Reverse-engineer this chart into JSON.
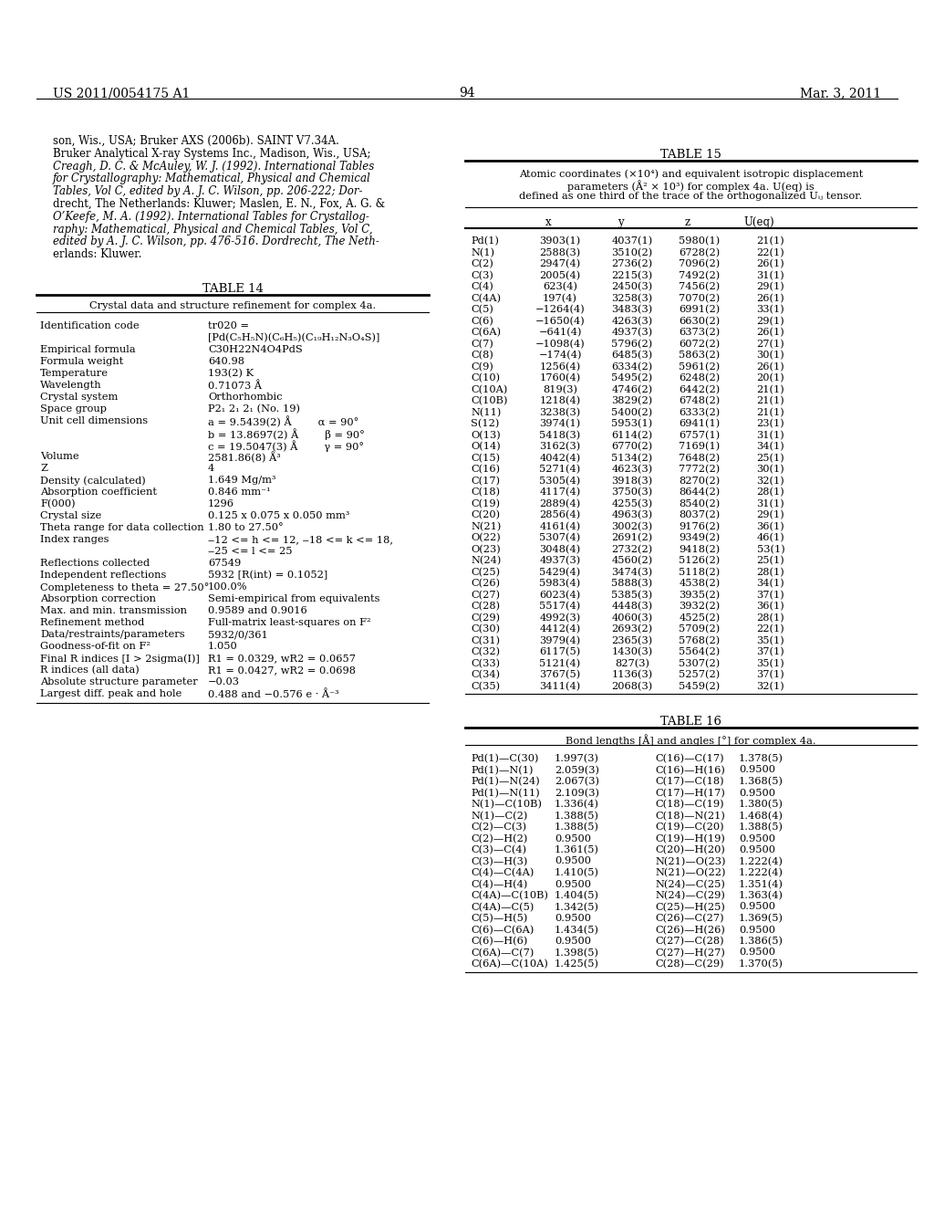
{
  "page_header_left": "US 2011/0054175 A1",
  "page_header_right": "Mar. 3, 2011",
  "page_number": "94",
  "background_color": "#ffffff",
  "intro_text": [
    "son, Wis., USA; Bruker AXS (2006b). SAINT V7.34A.",
    "Bruker Analytical X-ray Systems Inc., Madison, Wis., USA;",
    "Creagh, D. C. & McAuley, W. J. (1992). International Tables",
    "for Crystallography: Mathematical, Physical and Chemical",
    "Tables, Vol C, edited by A. J. C. Wilson, pp. 206-222; Dor-",
    "drecht, The Netherlands: Kluwer; Maslen, E. N., Fox, A. G. &",
    "O’Keefe, M. A. (1992). International Tables for Crystallog-",
    "raphy: Mathematical, Physical and Chemical Tables, Vol C,",
    "edited by A. J. C. Wilson, pp. 476-516. Dordrecht, The Neth-",
    "erlands: Kluwer."
  ],
  "intro_italic_lines": [
    2,
    3,
    4,
    6,
    7,
    8
  ],
  "table14_title": "TABLE 14",
  "table14_subtitle": "Crystal data and structure refinement for complex 4a.",
  "table14_rows": [
    [
      "Identification code",
      "tr020 =\n[Pd(C₅H₅N)(C₆H₅)(C₁₉H₁₂N₃O₄S)]"
    ],
    [
      "Empirical formula",
      "C30H22N4O4PdS"
    ],
    [
      "Formula weight",
      "640.98"
    ],
    [
      "Temperature",
      "193(2) K"
    ],
    [
      "Wavelength",
      "0.71073 Å"
    ],
    [
      "Crystal system",
      "Orthorhombic"
    ],
    [
      "Space group",
      "P2₁ 2₁ 2₁ (No. 19)"
    ],
    [
      "Unit cell dimensions",
      "a = 9.5439(2) Å        α = 90°\nb = 13.8697(2) Å        β = 90°\nc = 19.5047(3) Å        γ = 90°"
    ],
    [
      "Volume",
      "2581.86(8) Å³"
    ],
    [
      "Z",
      "4"
    ],
    [
      "Density (calculated)",
      "1.649 Mg/m³"
    ],
    [
      "Absorption coefficient",
      "0.846 mm⁻¹"
    ],
    [
      "F(000)",
      "1296"
    ],
    [
      "Crystal size",
      "0.125 x 0.075 x 0.050 mm³"
    ],
    [
      "Theta range for data collection",
      "1.80 to 27.50°"
    ],
    [
      "Index ranges",
      "‒12 <= h <= 12, ‒18 <= k <= 18,\n‒25 <= l <= 25"
    ],
    [
      "Reflections collected",
      "67549"
    ],
    [
      "Independent reflections",
      "5932 [R(int) = 0.1052]"
    ],
    [
      "Completeness to theta = 27.50°",
      "100.0%"
    ],
    [
      "Absorption correction",
      "Semi-empirical from equivalents"
    ],
    [
      "Max. and min. transmission",
      "0.9589 and 0.9016"
    ],
    [
      "Refinement method",
      "Full-matrix least-squares on F²"
    ],
    [
      "Data/restraints/parameters",
      "5932/0/361"
    ],
    [
      "Goodness-of-fit on F²",
      "1.050"
    ],
    [
      "Final R indices [I > 2sigma(I)]",
      "R1 = 0.0329, wR2 = 0.0657"
    ],
    [
      "R indices (all data)",
      "R1 = 0.0427, wR2 = 0.0698"
    ],
    [
      "Absolute structure parameter",
      "−0.03"
    ],
    [
      "Largest diff. peak and hole",
      "0.488 and −0.576 e · Å⁻³"
    ]
  ],
  "table15_title": "TABLE 15",
  "table15_subtitle_lines": [
    "Atomic coordinates (×10⁴) and equivalent isotropic displacement",
    "parameters (Å² × 10³) for complex 4a. U(eq) is",
    "defined as one third of the trace of the orthogonalized Uᵢⱼ tensor."
  ],
  "table15_col_headers": [
    "",
    "x",
    "y",
    "z",
    "U(eq)"
  ],
  "table15_rows": [
    [
      "Pd(1)",
      "3903(1)",
      "4037(1)",
      "5980(1)",
      "21(1)"
    ],
    [
      "N(1)",
      "2588(3)",
      "3510(2)",
      "6728(2)",
      "22(1)"
    ],
    [
      "C(2)",
      "2947(4)",
      "2736(2)",
      "7096(2)",
      "26(1)"
    ],
    [
      "C(3)",
      "2005(4)",
      "2215(3)",
      "7492(2)",
      "31(1)"
    ],
    [
      "C(4)",
      "623(4)",
      "2450(3)",
      "7456(2)",
      "29(1)"
    ],
    [
      "C(4A)",
      "197(4)",
      "3258(3)",
      "7070(2)",
      "26(1)"
    ],
    [
      "C(5)",
      "−1264(4)",
      "3483(3)",
      "6991(2)",
      "33(1)"
    ],
    [
      "C(6)",
      "−1650(4)",
      "4263(3)",
      "6630(2)",
      "29(1)"
    ],
    [
      "C(6A)",
      "−641(4)",
      "4937(3)",
      "6373(2)",
      "26(1)"
    ],
    [
      "C(7)",
      "−1098(4)",
      "5796(2)",
      "6072(2)",
      "27(1)"
    ],
    [
      "C(8)",
      "−174(4)",
      "6485(3)",
      "5863(2)",
      "30(1)"
    ],
    [
      "C(9)",
      "1256(4)",
      "6334(2)",
      "5961(2)",
      "26(1)"
    ],
    [
      "C(10)",
      "1760(4)",
      "5495(2)",
      "6248(2)",
      "20(1)"
    ],
    [
      "C(10A)",
      "819(3)",
      "4746(2)",
      "6442(2)",
      "21(1)"
    ],
    [
      "C(10B)",
      "1218(4)",
      "3829(2)",
      "6748(2)",
      "21(1)"
    ],
    [
      "N(11)",
      "3238(3)",
      "5400(2)",
      "6333(2)",
      "21(1)"
    ],
    [
      "S(12)",
      "3974(1)",
      "5953(1)",
      "6941(1)",
      "23(1)"
    ],
    [
      "O(13)",
      "5418(3)",
      "6114(2)",
      "6757(1)",
      "31(1)"
    ],
    [
      "O(14)",
      "3162(3)",
      "6770(2)",
      "7169(1)",
      "34(1)"
    ],
    [
      "C(15)",
      "4042(4)",
      "5134(2)",
      "7648(2)",
      "25(1)"
    ],
    [
      "C(16)",
      "5271(4)",
      "4623(3)",
      "7772(2)",
      "30(1)"
    ],
    [
      "C(17)",
      "5305(4)",
      "3918(3)",
      "8270(2)",
      "32(1)"
    ],
    [
      "C(18)",
      "4117(4)",
      "3750(3)",
      "8644(2)",
      "28(1)"
    ],
    [
      "C(19)",
      "2889(4)",
      "4255(3)",
      "8540(2)",
      "31(1)"
    ],
    [
      "C(20)",
      "2856(4)",
      "4963(3)",
      "8037(2)",
      "29(1)"
    ],
    [
      "N(21)",
      "4161(4)",
      "3002(3)",
      "9176(2)",
      "36(1)"
    ],
    [
      "O(22)",
      "5307(4)",
      "2691(2)",
      "9349(2)",
      "46(1)"
    ],
    [
      "O(23)",
      "3048(4)",
      "2732(2)",
      "9418(2)",
      "53(1)"
    ],
    [
      "N(24)",
      "4937(3)",
      "4560(2)",
      "5126(2)",
      "25(1)"
    ],
    [
      "C(25)",
      "5429(4)",
      "3474(3)",
      "5118(2)",
      "28(1)"
    ],
    [
      "C(26)",
      "5983(4)",
      "5888(3)",
      "4538(2)",
      "34(1)"
    ],
    [
      "C(27)",
      "6023(4)",
      "5385(3)",
      "3935(2)",
      "37(1)"
    ],
    [
      "C(28)",
      "5517(4)",
      "4448(3)",
      "3932(2)",
      "36(1)"
    ],
    [
      "C(29)",
      "4992(3)",
      "4060(3)",
      "4525(2)",
      "28(1)"
    ],
    [
      "C(30)",
      "4412(4)",
      "2693(2)",
      "5709(2)",
      "22(1)"
    ],
    [
      "C(31)",
      "3979(4)",
      "2365(3)",
      "5768(2)",
      "35(1)"
    ],
    [
      "C(32)",
      "6117(5)",
      "1430(3)",
      "5564(2)",
      "37(1)"
    ],
    [
      "C(33)",
      "5121(4)",
      "827(3)",
      "5307(2)",
      "35(1)"
    ],
    [
      "C(34)",
      "3767(5)",
      "1136(3)",
      "5257(2)",
      "37(1)"
    ],
    [
      "C(35)",
      "3411(4)",
      "2068(3)",
      "5459(2)",
      "32(1)"
    ]
  ],
  "table16_title": "TABLE 16",
  "table16_subtitle": "Bond lengths [Å] and angles [°] for complex 4a.",
  "table16_rows": [
    [
      "Pd(1)—C(30)",
      "1.997(3)",
      "C(16)—C(17)",
      "1.378(5)"
    ],
    [
      "Pd(1)—N(1)",
      "2.059(3)",
      "C(16)—H(16)",
      "0.9500"
    ],
    [
      "Pd(1)—N(24)",
      "2.067(3)",
      "C(17)—C(18)",
      "1.368(5)"
    ],
    [
      "Pd(1)—N(11)",
      "2.109(3)",
      "C(17)—H(17)",
      "0.9500"
    ],
    [
      "N(1)—C(10B)",
      "1.336(4)",
      "C(18)—C(19)",
      "1.380(5)"
    ],
    [
      "N(1)—C(2)",
      "1.388(5)",
      "C(18)—N(21)",
      "1.468(4)"
    ],
    [
      "C(2)—C(3)",
      "1.388(5)",
      "C(19)—C(20)",
      "1.388(5)"
    ],
    [
      "C(2)—H(2)",
      "0.9500",
      "C(19)—H(19)",
      "0.9500"
    ],
    [
      "C(3)—C(4)",
      "1.361(5)",
      "C(20)—H(20)",
      "0.9500"
    ],
    [
      "C(3)—H(3)",
      "0.9500",
      "N(21)—O(23)",
      "1.222(4)"
    ],
    [
      "C(4)—C(4A)",
      "1.410(5)",
      "N(21)—O(22)",
      "1.222(4)"
    ],
    [
      "C(4)—H(4)",
      "0.9500",
      "N(24)—C(25)",
      "1.351(4)"
    ],
    [
      "C(4A)—C(10B)",
      "1.404(5)",
      "N(24)—C(29)",
      "1.363(4)"
    ],
    [
      "C(4A)—C(5)",
      "1.342(5)",
      "C(25)—H(25)",
      "0.9500"
    ],
    [
      "C(5)—H(5)",
      "0.9500",
      "C(26)—C(27)",
      "1.369(5)"
    ],
    [
      "C(6)—C(6A)",
      "1.434(5)",
      "C(26)—H(26)",
      "0.9500"
    ],
    [
      "C(6)—H(6)",
      "0.9500",
      "C(27)—C(28)",
      "1.386(5)"
    ],
    [
      "C(6A)—C(7)",
      "1.398(5)",
      "C(27)—H(27)",
      "0.9500"
    ],
    [
      "C(6A)—C(10A)",
      "1.425(5)",
      "C(28)—C(29)",
      "1.370(5)"
    ]
  ]
}
